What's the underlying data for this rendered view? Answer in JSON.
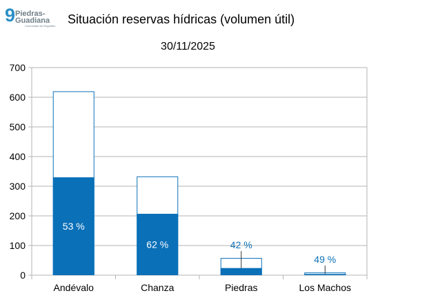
{
  "logo": {
    "text_line1": "Piedras-",
    "text_line2": "Guadiana",
    "tagline": "Comunidad de Regantes"
  },
  "title": "Situación reservas hídricas (volumen útil)",
  "date": "30/11/2025",
  "colors": {
    "filled": "#0a70b8",
    "outline": "#0a70b8",
    "grid": "#b3b3b3",
    "label_inside": "#ffffff",
    "label_outside": "#0a70b8"
  },
  "chart_data": {
    "type": "bar",
    "stacking": "overlay",
    "categories": [
      "Andévalo",
      "Chanza",
      "Piedras",
      "Los Machos"
    ],
    "series": [
      {
        "role": "capacity",
        "values": [
          620,
          333,
          58,
          9
        ]
      },
      {
        "role": "current",
        "values": [
          330,
          207,
          24,
          4
        ]
      }
    ],
    "data_labels": [
      "53 %",
      "62 %",
      "42 %",
      "49 %"
    ],
    "ylim": [
      0,
      700
    ],
    "yticks": [
      0,
      100,
      200,
      300,
      400,
      500,
      600,
      700
    ],
    "grid": true,
    "legend": "none"
  }
}
